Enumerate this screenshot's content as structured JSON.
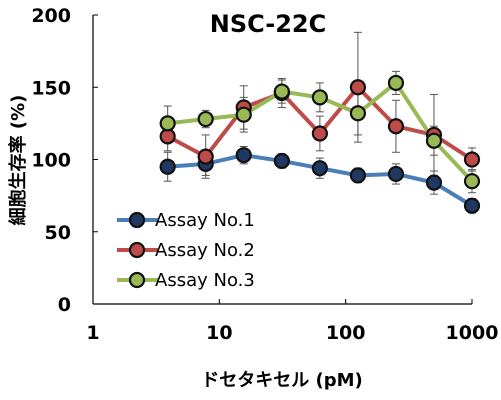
{
  "chart_data": {
    "type": "line",
    "title": "NSC-22C",
    "xlabel": "ドセタキセル (pM)",
    "ylabel": "細胞生存率 (%)",
    "xscale": "log",
    "xlim": [
      1,
      1000
    ],
    "ylim": [
      0,
      200
    ],
    "x_ticks": [
      "1",
      "10",
      "100",
      "1000"
    ],
    "y_ticks": [
      "0",
      "50",
      "100",
      "150",
      "200"
    ],
    "x": [
      3.9,
      7.8,
      15.6,
      31.25,
      62.5,
      125,
      250,
      500,
      1000
    ],
    "series": [
      {
        "name": "Assay No.1",
        "color": "#4a7ebb",
        "marker_fill": "#1f3864",
        "values": [
          95,
          97,
          103,
          99,
          94,
          89,
          90,
          84,
          68
        ],
        "errors": [
          10,
          8,
          6,
          5,
          7,
          5,
          7,
          8,
          5
        ]
      },
      {
        "name": "Assay No.2",
        "color": "#be4b48",
        "marker_fill": "#be4b48",
        "values": [
          116,
          102,
          136,
          146,
          118,
          150,
          123,
          117,
          100
        ],
        "errors": [
          10,
          15,
          15,
          10,
          12,
          38,
          18,
          28,
          8
        ]
      },
      {
        "name": "Assay No.3",
        "color": "#98b954",
        "marker_fill": "#98b954",
        "values": [
          125,
          128,
          131,
          147,
          143,
          132,
          153,
          113,
          85
        ],
        "errors": [
          12,
          6,
          12,
          8,
          10,
          15,
          8,
          10,
          8
        ]
      }
    ],
    "legend_position": "lower-left",
    "grid": false
  }
}
